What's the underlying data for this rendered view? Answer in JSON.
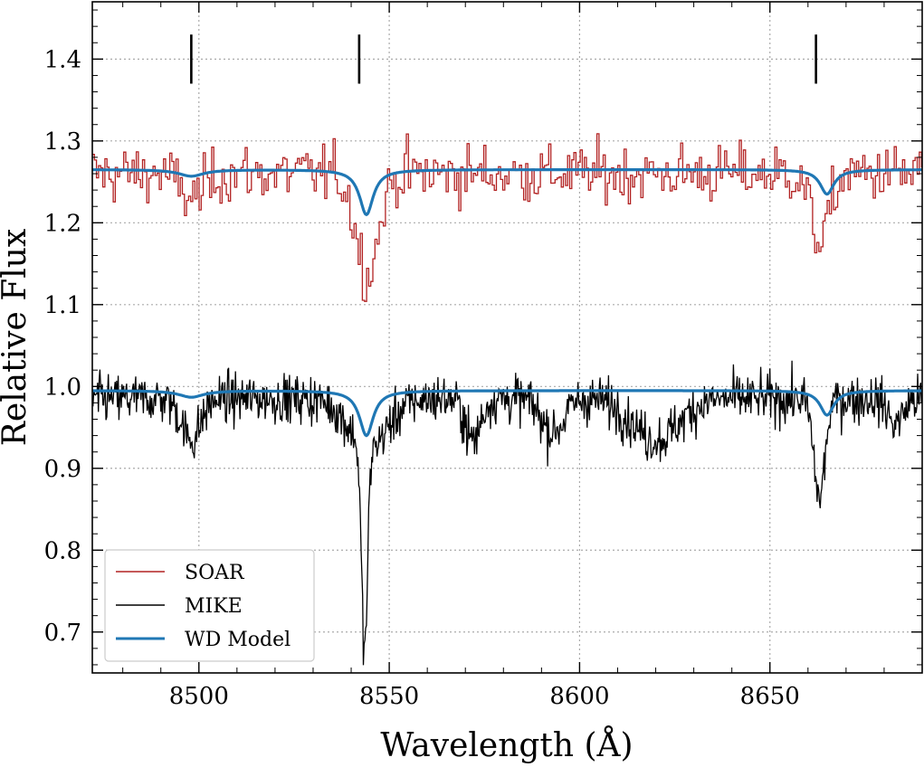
{
  "chart_data": {
    "type": "line",
    "xlabel": "Wavelength (Å)",
    "ylabel": "Relative Flux",
    "xlim": [
      8472,
      8690
    ],
    "ylim": [
      0.65,
      1.47
    ],
    "x_ticks": [
      8500,
      8550,
      8600,
      8650
    ],
    "x_tick_labels": [
      "8500",
      "8550",
      "8600",
      "8650"
    ],
    "y_ticks": [
      0.7,
      0.8,
      0.9,
      1.0,
      1.1,
      1.2,
      1.3,
      1.4
    ],
    "y_tick_labels": [
      "0.7",
      "0.8",
      "0.9",
      "1.0",
      "1.1",
      "1.2",
      "1.3",
      "1.4"
    ],
    "grid": true,
    "legend_position": "bottom-left",
    "line_markers": {
      "x": [
        8498.0,
        8542.1,
        8662.1
      ],
      "ymin": 1.37,
      "ymax": 1.43
    },
    "series": [
      {
        "name": "SOAR",
        "color": "#b22222",
        "style": "steps",
        "description_of_values": "noisy stepped spectrum around 1.26 with absorption dips",
        "continuum": 1.26,
        "noise": 0.03,
        "step": 0.55,
        "dips": [
          {
            "center": 8498.0,
            "depth": 0.03,
            "width": 3
          },
          {
            "center": 8544.0,
            "depth": 0.12,
            "width": 3
          },
          {
            "center": 8663.0,
            "depth": 0.08,
            "width": 2.5
          }
        ]
      },
      {
        "name": "MIKE",
        "color": "#000000",
        "style": "line",
        "description_of_values": "noisy high-resolution spectrum around 0.99 with absorption dips",
        "continuum": 0.985,
        "noise": 0.025,
        "step": 0.2,
        "dips": [
          {
            "center": 8498.0,
            "depth": 0.05,
            "width": 2.5
          },
          {
            "center": 8543.5,
            "depth": 0.25,
            "width": 0.8
          },
          {
            "center": 8544.5,
            "depth": 0.06,
            "width": 5
          },
          {
            "center": 8572.0,
            "depth": 0.05,
            "width": 2
          },
          {
            "center": 8593.0,
            "depth": 0.04,
            "width": 3
          },
          {
            "center": 8620.0,
            "depth": 0.05,
            "width": 6
          },
          {
            "center": 8663.0,
            "depth": 0.12,
            "width": 1.5
          },
          {
            "center": 8683.0,
            "depth": 0.03,
            "width": 2
          }
        ]
      },
      {
        "name": "WD Model",
        "color": "#1f77b4",
        "style": "smooth",
        "continuum_offset_upper": 1.265,
        "continuum_offset_lower": 0.995,
        "model_lines": [
          {
            "center": 8498.0,
            "depth": 0.008,
            "width": 4
          },
          {
            "center": 8544.0,
            "depth": 0.055,
            "width": 2.2
          },
          {
            "center": 8665.0,
            "depth": 0.03,
            "width": 2.2
          }
        ]
      }
    ],
    "legend": [
      "SOAR",
      "MIKE",
      "WD Model"
    ]
  }
}
